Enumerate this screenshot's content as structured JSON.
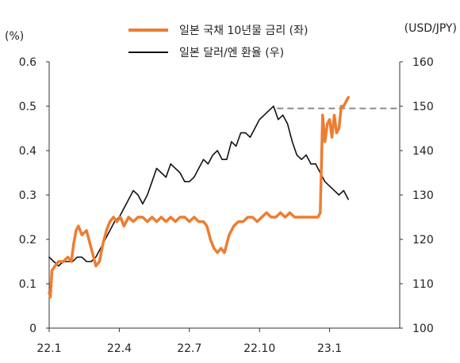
{
  "chart_data": {
    "type": "line",
    "left_unit": "(%)",
    "right_unit": "(USD/JPY)",
    "x_ticks": [
      "22.1",
      "22.4",
      "22.7",
      "22.10",
      "23.1"
    ],
    "y_left": {
      "min": 0,
      "max": 0.6,
      "ticks": [
        "0",
        "0.1",
        "0.2",
        "0.3",
        "0.4",
        "0.5",
        "0.6"
      ]
    },
    "y_right": {
      "min": 100,
      "max": 160,
      "ticks": [
        "100",
        "110",
        "120",
        "130",
        "140",
        "150",
        "160"
      ]
    },
    "grid": false,
    "legend_position": "top-right",
    "x_range_months": [
      0,
      15
    ],
    "series": [
      {
        "name": "일본 국채 10년물 금리 (좌)",
        "axis": "left",
        "color": "#ED7D31",
        "x": [
          0.0,
          0.05,
          0.12,
          0.25,
          0.4,
          0.6,
          0.8,
          0.95,
          1.05,
          1.15,
          1.25,
          1.4,
          1.6,
          1.8,
          2.0,
          2.15,
          2.3,
          2.45,
          2.6,
          2.75,
          2.9,
          3.05,
          3.2,
          3.4,
          3.6,
          3.8,
          4.0,
          4.2,
          4.4,
          4.6,
          4.8,
          5.0,
          5.2,
          5.4,
          5.6,
          5.8,
          6.0,
          6.2,
          6.4,
          6.6,
          6.75,
          6.9,
          7.05,
          7.2,
          7.35,
          7.5,
          7.7,
          7.9,
          8.1,
          8.3,
          8.5,
          8.7,
          8.9,
          9.1,
          9.3,
          9.5,
          9.7,
          9.9,
          10.1,
          10.3,
          10.5,
          10.7,
          10.9,
          11.1,
          11.3,
          11.5,
          11.6,
          11.7,
          11.8,
          11.9,
          12.0,
          12.1,
          12.2,
          12.3,
          12.4,
          12.5,
          12.6,
          12.7,
          12.8
        ],
        "values": [
          0.08,
          0.07,
          0.13,
          0.14,
          0.15,
          0.15,
          0.16,
          0.15,
          0.19,
          0.22,
          0.23,
          0.21,
          0.22,
          0.18,
          0.14,
          0.15,
          0.19,
          0.22,
          0.24,
          0.25,
          0.24,
          0.25,
          0.23,
          0.25,
          0.24,
          0.25,
          0.25,
          0.24,
          0.25,
          0.24,
          0.25,
          0.24,
          0.25,
          0.24,
          0.25,
          0.25,
          0.24,
          0.25,
          0.24,
          0.24,
          0.23,
          0.2,
          0.18,
          0.17,
          0.18,
          0.17,
          0.21,
          0.23,
          0.24,
          0.24,
          0.25,
          0.25,
          0.24,
          0.25,
          0.26,
          0.25,
          0.25,
          0.26,
          0.25,
          0.26,
          0.25,
          0.25,
          0.25,
          0.25,
          0.25,
          0.25,
          0.26,
          0.48,
          0.42,
          0.46,
          0.47,
          0.43,
          0.48,
          0.44,
          0.45,
          0.5,
          0.5,
          0.51,
          0.52
        ]
      },
      {
        "name": "일본 달러/엔 환율 (우)",
        "axis": "right",
        "color": "#111111",
        "x": [
          0.0,
          0.2,
          0.4,
          0.6,
          0.8,
          1.0,
          1.2,
          1.4,
          1.6,
          1.8,
          2.0,
          2.2,
          2.4,
          2.6,
          2.8,
          3.0,
          3.2,
          3.4,
          3.6,
          3.8,
          4.0,
          4.2,
          4.4,
          4.6,
          4.8,
          5.0,
          5.2,
          5.4,
          5.6,
          5.8,
          6.0,
          6.2,
          6.4,
          6.6,
          6.8,
          7.0,
          7.2,
          7.4,
          7.6,
          7.8,
          8.0,
          8.2,
          8.4,
          8.6,
          8.8,
          9.0,
          9.2,
          9.4,
          9.6,
          9.8,
          10.0,
          10.2,
          10.4,
          10.6,
          10.8,
          11.0,
          11.2,
          11.4,
          11.6,
          11.8,
          12.0,
          12.2,
          12.4,
          12.6,
          12.8
        ],
        "values": [
          116,
          115,
          114,
          115,
          115,
          115,
          116,
          116,
          115,
          115,
          116,
          118,
          120,
          122,
          124,
          125,
          127,
          129,
          131,
          130,
          128,
          130,
          133,
          136,
          135,
          134,
          137,
          136,
          135,
          133,
          133,
          134,
          136,
          138,
          137,
          139,
          140,
          138,
          138,
          142,
          141,
          144,
          144,
          143,
          145,
          147,
          148,
          149,
          150,
          147,
          148,
          146,
          142,
          139,
          138,
          139,
          137,
          137,
          135,
          133,
          132,
          131,
          130,
          131,
          129
        ]
      }
    ],
    "reference_line": {
      "axis": "right",
      "value": 149.5,
      "style": "dashed",
      "x_start": 9.75,
      "x_end": 15.0,
      "color": "#8c8c8c"
    }
  }
}
